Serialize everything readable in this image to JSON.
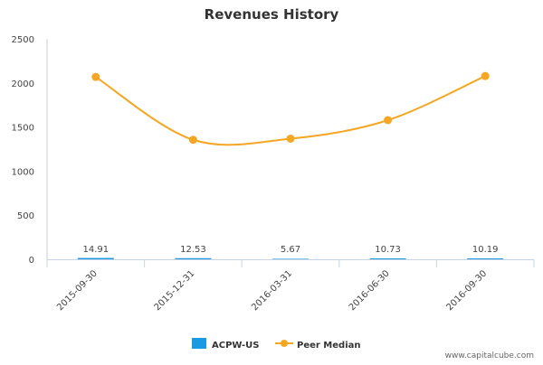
{
  "chart_data": {
    "type": "line",
    "title": "Revenues History",
    "xlabel": "",
    "ylabel": "",
    "ylim": [
      0,
      2500
    ],
    "yticks": [
      0,
      500,
      1000,
      1500,
      2000,
      2500
    ],
    "categories": [
      "2015-09-30",
      "2015-12-31",
      "2016-03-31",
      "2016-06-30",
      "2016-09-30"
    ],
    "series": [
      {
        "name": "ACPW-US",
        "type": "bar",
        "color": "#1a9ae0",
        "values": [
          14.91,
          12.53,
          5.67,
          10.73,
          10.19
        ],
        "labels": [
          "14.91",
          "12.53",
          "5.67",
          "10.73",
          "10.19"
        ]
      },
      {
        "name": "Peer Median",
        "type": "line",
        "color": "#f5a623",
        "values": [
          2068,
          1355,
          1368,
          1578,
          2078
        ]
      }
    ],
    "grid": false,
    "legend_position": "bottom-center"
  },
  "footer": {
    "watermark": "www.capitalcube.com"
  }
}
